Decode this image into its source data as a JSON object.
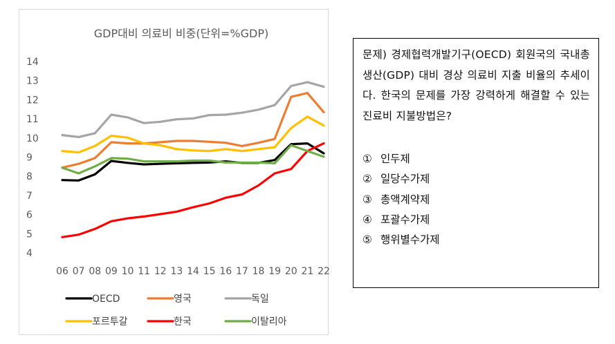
{
  "chart_data": {
    "type": "line",
    "title": "GDP대비 의료비 비중(단위=%GDP)",
    "xlabel": "",
    "ylabel": "",
    "x": [
      "06",
      "07",
      "08",
      "09",
      "10",
      "11",
      "12",
      "13",
      "14",
      "15",
      "16",
      "17",
      "18",
      "19",
      "20",
      "21",
      "22"
    ],
    "ylim": [
      4,
      14
    ],
    "yticks": [
      4,
      5,
      6,
      7,
      8,
      9,
      10,
      11,
      12,
      13,
      14
    ],
    "grid": false,
    "legend_position": "bottom",
    "series": [
      {
        "name": "OECD",
        "color": "#000000",
        "values": [
          7.8,
          7.78,
          8.1,
          8.8,
          8.7,
          8.62,
          8.65,
          8.68,
          8.7,
          8.72,
          8.78,
          8.7,
          8.7,
          8.85,
          9.68,
          9.72,
          9.2
        ]
      },
      {
        "name": "영국",
        "color": "#ED7D31",
        "values": [
          8.45,
          8.65,
          8.95,
          9.78,
          9.72,
          9.72,
          9.78,
          9.85,
          9.85,
          9.8,
          9.75,
          9.58,
          9.75,
          9.95,
          12.15,
          12.35,
          11.35
        ]
      },
      {
        "name": "독일",
        "color": "#A5A5A5",
        "values": [
          10.15,
          10.05,
          10.25,
          11.22,
          11.08,
          10.78,
          10.85,
          10.98,
          11.02,
          11.2,
          11.22,
          11.32,
          11.48,
          11.72,
          12.72,
          12.92,
          12.68
        ]
      },
      {
        "name": "포르투갈",
        "color": "#FFC000",
        "values": [
          9.32,
          9.25,
          9.58,
          10.12,
          10.02,
          9.72,
          9.62,
          9.42,
          9.35,
          9.32,
          9.42,
          9.32,
          9.42,
          9.52,
          10.52,
          11.12,
          10.65
        ]
      },
      {
        "name": "한국",
        "color": "#FF0000",
        "values": [
          4.82,
          4.95,
          5.25,
          5.65,
          5.8,
          5.9,
          6.02,
          6.15,
          6.38,
          6.58,
          6.88,
          7.05,
          7.52,
          8.15,
          8.38,
          9.32,
          9.72
        ]
      },
      {
        "name": "이탈리아",
        "color": "#70AD47",
        "values": [
          8.45,
          8.15,
          8.52,
          8.95,
          8.92,
          8.78,
          8.78,
          8.78,
          8.82,
          8.82,
          8.72,
          8.72,
          8.72,
          8.68,
          9.62,
          9.32,
          9.02
        ]
      }
    ]
  },
  "question": {
    "text": "문제) 경제협력개발기구(OECD) 회원국의 국내총생산(GDP) 대비 경상 의료비 지출 비율의 추세이다. 한국의 문제를 가장 강력하게 해결할 수 있는 진료비 지불방법은?",
    "options": [
      {
        "num": "①",
        "label": "인두제"
      },
      {
        "num": "②",
        "label": "일당수가제"
      },
      {
        "num": "③",
        "label": "총액계약제"
      },
      {
        "num": "④",
        "label": "포괄수가제"
      },
      {
        "num": "⑤",
        "label": "행위별수가제"
      }
    ]
  }
}
